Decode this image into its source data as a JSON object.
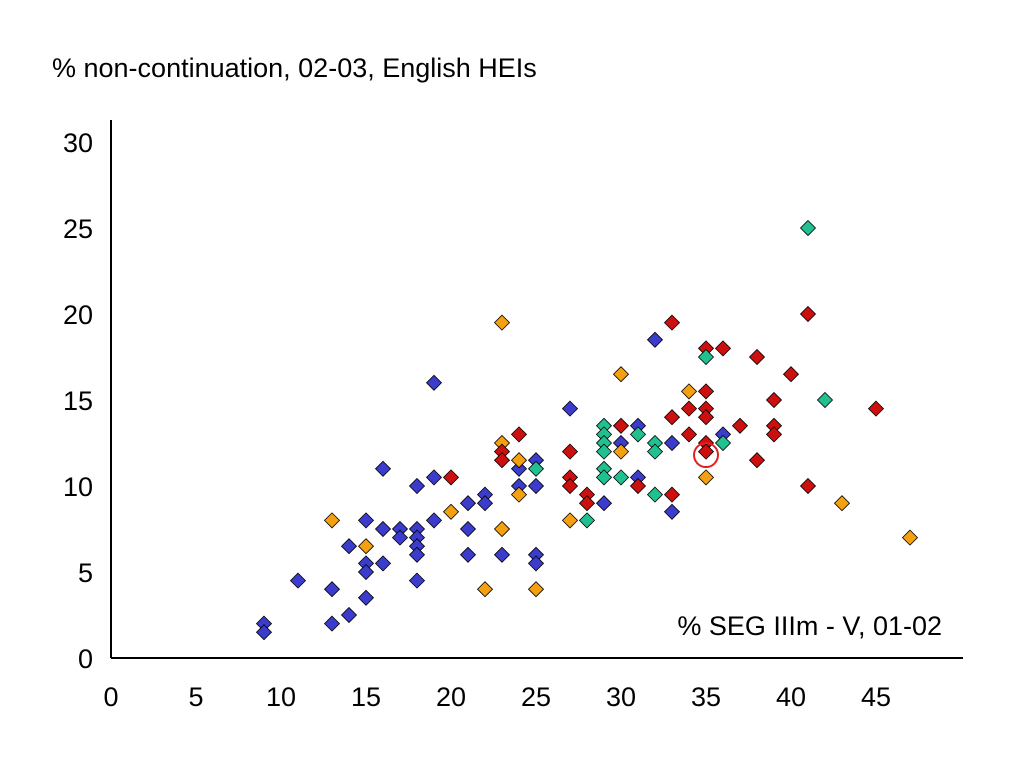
{
  "chart_data": {
    "type": "scatter",
    "ylabel": "% non-continuation, 02-03, English HEIs",
    "xlabel": "% SEG IIIm - V, 01-02",
    "xlim": [
      0,
      50
    ],
    "ylim": [
      0,
      30
    ],
    "xticks": [
      0,
      5,
      10,
      15,
      20,
      25,
      30,
      35,
      40,
      45
    ],
    "yticks": [
      0,
      5,
      10,
      15,
      20,
      25,
      30
    ],
    "grid": false,
    "marker": "diamond",
    "highlight": {
      "x": 35,
      "y": 11.8,
      "marker": "circle",
      "color": "#e02020"
    },
    "series": [
      {
        "color": "#3c3ccc",
        "points": [
          [
            9,
            2
          ],
          [
            9,
            1.5
          ],
          [
            11,
            4.5
          ],
          [
            13,
            4
          ],
          [
            13,
            2
          ],
          [
            14,
            6.5
          ],
          [
            14,
            2.5
          ],
          [
            15,
            8
          ],
          [
            15,
            5.5
          ],
          [
            15,
            5
          ],
          [
            15,
            3.5
          ],
          [
            16,
            11
          ],
          [
            16,
            7.5
          ],
          [
            16,
            5.5
          ],
          [
            17,
            7.5
          ],
          [
            17,
            7
          ],
          [
            18,
            10
          ],
          [
            18,
            7.5
          ],
          [
            18,
            7
          ],
          [
            18,
            6.5
          ],
          [
            18,
            6
          ],
          [
            18,
            4.5
          ],
          [
            19,
            16
          ],
          [
            19,
            10.5
          ],
          [
            19,
            8
          ],
          [
            21,
            9
          ],
          [
            21,
            7.5
          ],
          [
            21,
            6
          ],
          [
            22,
            9.5
          ],
          [
            22,
            9
          ],
          [
            23,
            6
          ],
          [
            24,
            11
          ],
          [
            24,
            10
          ],
          [
            25,
            11.5
          ],
          [
            25,
            10
          ],
          [
            25,
            6
          ],
          [
            25,
            5.5
          ],
          [
            27,
            14.5
          ],
          [
            29,
            9
          ],
          [
            30,
            12.5
          ],
          [
            31,
            13.5
          ],
          [
            31,
            10.5
          ],
          [
            32,
            18.5
          ],
          [
            33,
            12.5
          ],
          [
            33,
            8.5
          ],
          [
            36,
            13
          ]
        ]
      },
      {
        "color": "#f5a010",
        "points": [
          [
            13,
            8
          ],
          [
            15,
            6.5
          ],
          [
            20,
            8.5
          ],
          [
            22,
            4
          ],
          [
            23,
            19.5
          ],
          [
            23,
            12.5
          ],
          [
            23,
            7.5
          ],
          [
            24,
            11.5
          ],
          [
            24,
            9.5
          ],
          [
            25,
            4
          ],
          [
            27,
            8
          ],
          [
            30,
            16.5
          ],
          [
            30,
            12
          ],
          [
            34,
            15.5
          ],
          [
            35,
            10.5
          ],
          [
            43,
            9
          ],
          [
            47,
            7
          ]
        ]
      },
      {
        "color": "#cc1010",
        "points": [
          [
            20,
            10.5
          ],
          [
            23,
            12
          ],
          [
            23,
            11.5
          ],
          [
            24,
            13
          ],
          [
            27,
            12
          ],
          [
            27,
            10.5
          ],
          [
            27,
            10
          ],
          [
            28,
            9.5
          ],
          [
            28,
            9
          ],
          [
            30,
            13.5
          ],
          [
            31,
            10
          ],
          [
            33,
            19.5
          ],
          [
            33,
            14
          ],
          [
            33,
            9.5
          ],
          [
            34,
            14.5
          ],
          [
            34,
            13
          ],
          [
            35,
            18
          ],
          [
            35,
            15.5
          ],
          [
            35,
            14.5
          ],
          [
            35,
            14
          ],
          [
            35,
            12.5
          ],
          [
            35,
            12
          ],
          [
            36,
            18
          ],
          [
            37,
            13.5
          ],
          [
            38,
            17.5
          ],
          [
            38,
            11.5
          ],
          [
            39,
            15
          ],
          [
            39,
            13.5
          ],
          [
            39,
            13
          ],
          [
            40,
            16.5
          ],
          [
            41,
            20
          ],
          [
            41,
            10
          ],
          [
            45,
            14.5
          ]
        ]
      },
      {
        "color": "#20c090",
        "points": [
          [
            25,
            11
          ],
          [
            28,
            8
          ],
          [
            29,
            13.5
          ],
          [
            29,
            13
          ],
          [
            29,
            12.5
          ],
          [
            29,
            12
          ],
          [
            29,
            11
          ],
          [
            29,
            10.5
          ],
          [
            30,
            10.5
          ],
          [
            31,
            13
          ],
          [
            32,
            12.5
          ],
          [
            32,
            12
          ],
          [
            32,
            9.5
          ],
          [
            35,
            17.5
          ],
          [
            36,
            12.5
          ],
          [
            41,
            25
          ],
          [
            42,
            15
          ]
        ]
      }
    ]
  }
}
